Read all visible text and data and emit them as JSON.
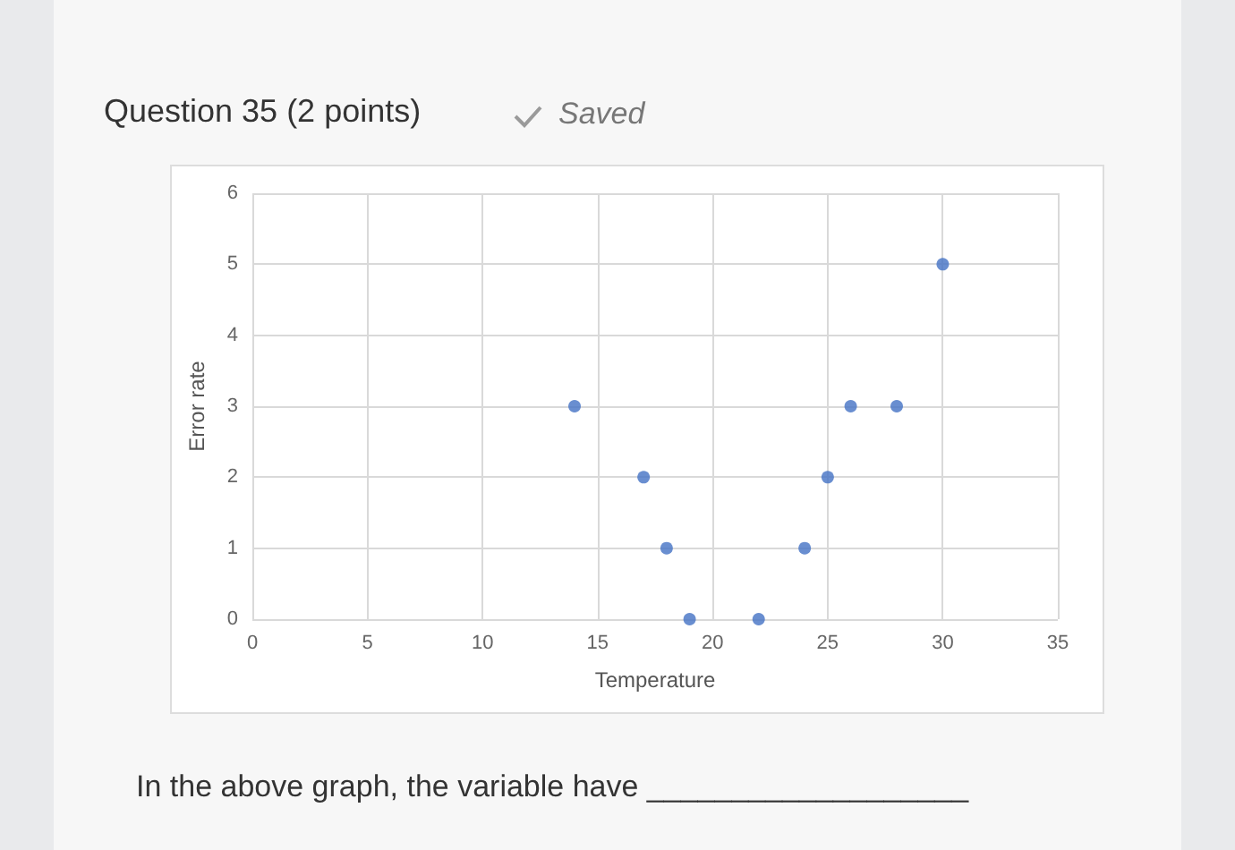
{
  "chart_data": {
    "type": "scatter",
    "xlabel": "Temperature",
    "ylabel": "Error rate",
    "annotations": [
      "Question 35 (2 points)",
      "Saved",
      "In the above graph, the variable have ___________________"
    ],
    "x": [
      14,
      17,
      18,
      19,
      22,
      24,
      25,
      26,
      28,
      30
    ],
    "series": [
      {
        "color": "#4472c4",
        "values": [
          3,
          2,
          1,
          0,
          0,
          1,
          2,
          3,
          3,
          5
        ]
      }
    ],
    "xlim": [
      0,
      35
    ],
    "xticks": [
      0,
      5,
      10,
      15,
      20,
      25,
      30,
      35
    ],
    "ylim": [
      0,
      6
    ],
    "yticks": [
      0,
      1,
      2,
      3,
      4,
      5,
      6
    ],
    "grid": true,
    "marker": "circle"
  }
}
